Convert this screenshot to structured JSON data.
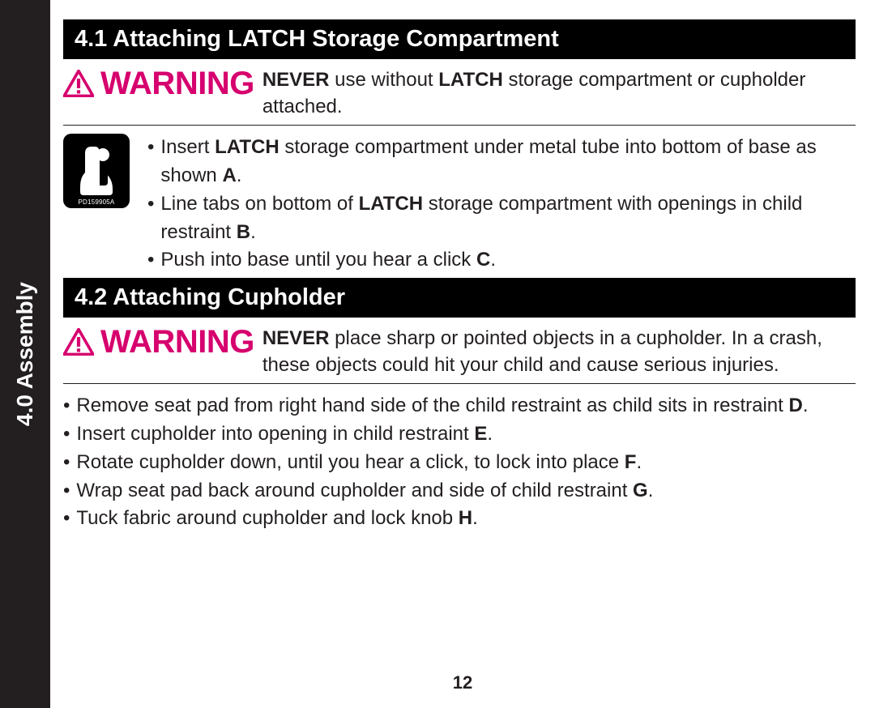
{
  "tab_label": "4.0 Assembly",
  "page_number": "12",
  "warning_label": "WARNING",
  "warning_color": "#d6006e",
  "seat_icon_code": "PD159905A",
  "section1": {
    "heading": "4.1 Attaching LATCH Storage Compartment",
    "warning_html": "<b>NEVER</b> use without <b>LATCH</b> storage compartment or cupholder attached.",
    "bullets": [
      "Insert <b>LATCH</b> storage compartment under metal tube into bottom of base as shown <b>A</b>.",
      "Line tabs on bottom of <b>LATCH</b> storage compartment with openings in child restraint <b>B</b>.",
      "Push into base until you hear a click <b>C</b>."
    ]
  },
  "section2": {
    "heading": "4.2 Attaching Cupholder",
    "warning_html": "<b>NEVER</b> place sharp or pointed objects in a cupholder. In a crash, these objects could hit your child and cause serious injuries.",
    "bullets": [
      "Remove seat pad from right hand side of the child restraint as child sits in restraint <b>D</b>.",
      "Insert cupholder into opening in child restraint <b>E</b>.",
      "Rotate cupholder down, until you hear a click, to lock into place <b>F</b>.",
      "Wrap seat pad back around cupholder and side of child restraint <b>G</b>.",
      "Tuck fabric around cupholder and lock knob <b>H</b>."
    ]
  }
}
